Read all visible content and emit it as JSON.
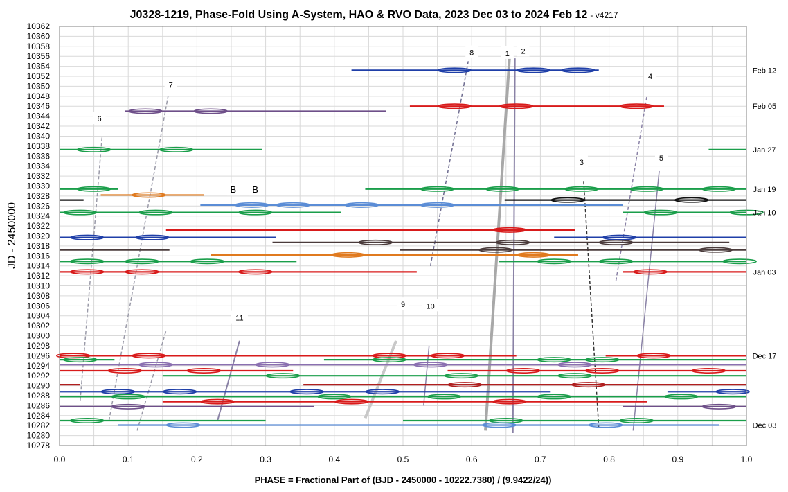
{
  "chart_data": {
    "type": "scatter",
    "title": "J0328-1219, Phase-Fold Using A-System, HAO & RVO Data, 2023 Dec 03 to 2024 Feb 12",
    "title_suffix": "- v4217",
    "xlabel": "PHASE = Fractional Part of (BJD - 2450000 - 10222.7380) / (9.9422/24))",
    "ylabel": "JD - 2450000",
    "xlim": [
      0.0,
      1.0
    ],
    "ylim": [
      10278,
      10362
    ],
    "x_ticks": [
      "0.0",
      "0.1",
      "0.2",
      "0.3",
      "0.4",
      "0.5",
      "0.6",
      "0.7",
      "0.8",
      "0.9",
      "1.0"
    ],
    "y_tick_step": 2,
    "grid": true,
    "date_labels": [
      {
        "label": "Feb 12",
        "y": 10353.2
      },
      {
        "label": "Feb 05",
        "y": 10346.0
      },
      {
        "label": "Jan 27",
        "y": 10337.3
      },
      {
        "label": "Jan 19",
        "y": 10329.4
      },
      {
        "label": "Jan 10",
        "y": 10324.7
      },
      {
        "label": "Jan 03",
        "y": 10312.8
      },
      {
        "label": "Dec 17",
        "y": 10296.0
      },
      {
        "label": "Dec 03",
        "y": 10282.1
      }
    ],
    "annotations": [
      {
        "text": "1",
        "x": 0.652,
        "y": 10356.6
      },
      {
        "text": "2",
        "x": 0.675,
        "y": 10357.1
      },
      {
        "text": "3",
        "x": 0.76,
        "y": 10334.8
      },
      {
        "text": "4",
        "x": 0.86,
        "y": 10352.0
      },
      {
        "text": "5",
        "x": 0.876,
        "y": 10335.6
      },
      {
        "text": "6",
        "x": 0.058,
        "y": 10343.5
      },
      {
        "text": "7",
        "x": 0.162,
        "y": 10350.3
      },
      {
        "text": "8",
        "x": 0.6,
        "y": 10356.8
      },
      {
        "text": "9",
        "x": 0.5,
        "y": 10306.3
      },
      {
        "text": "10",
        "x": 0.54,
        "y": 10306.0
      },
      {
        "text": "11",
        "x": 0.262,
        "y": 10303.6
      },
      {
        "text": "B",
        "x": 0.253,
        "y": 10329.2
      },
      {
        "text": "B",
        "x": 0.285,
        "y": 10329.2
      }
    ],
    "series": [
      {
        "color": "#1f3fa8",
        "y": 10353.2,
        "x_start": 0.425,
        "x_end": 0.785,
        "ellipses": [
          0.575,
          0.69,
          0.755
        ]
      },
      {
        "color": "#d81b1b",
        "y": 10346.0,
        "x_start": 0.51,
        "x_end": 0.88,
        "ellipses": [
          0.575,
          0.665,
          0.84
        ]
      },
      {
        "color": "#6e4f89",
        "y": 10345.0,
        "x_start": 0.095,
        "x_end": 0.475,
        "ellipses": [
          0.125,
          0.22
        ]
      },
      {
        "color": "#1a9e4a",
        "y": 10337.3,
        "x_start": 0.0,
        "x_end": 0.295,
        "ellipses": [
          0.05,
          0.17
        ]
      },
      {
        "color": "#1a9e4a",
        "y": 10337.3,
        "x_start": 0.945,
        "x_end": 1.0,
        "ellipses": []
      },
      {
        "color": "#1a9e4a",
        "y": 10329.4,
        "x_start": 0.0,
        "x_end": 0.085,
        "ellipses": [
          0.05
        ]
      },
      {
        "color": "#1a9e4a",
        "y": 10329.4,
        "x_start": 0.445,
        "x_end": 1.0,
        "ellipses": [
          0.55,
          0.645,
          0.76,
          0.855,
          0.96
        ]
      },
      {
        "color": "#e07a1f",
        "y": 10328.2,
        "x_start": 0.06,
        "x_end": 0.21,
        "ellipses": [
          0.13
        ]
      },
      {
        "color": "#111111",
        "y": 10327.2,
        "x_start": 0.0,
        "x_end": 0.035,
        "ellipses": []
      },
      {
        "color": "#111111",
        "y": 10327.2,
        "x_start": 0.648,
        "x_end": 1.0,
        "ellipses": [
          0.74,
          0.92
        ]
      },
      {
        "color": "#5b8dd6",
        "y": 10326.2,
        "x_start": 0.205,
        "x_end": 0.82,
        "ellipses": [
          0.28,
          0.34,
          0.44,
          0.55
        ]
      },
      {
        "color": "#1a9e4a",
        "y": 10324.7,
        "x_start": 0.0,
        "x_end": 0.41,
        "ellipses": [
          0.03,
          0.14,
          0.285
        ]
      },
      {
        "color": "#1a9e4a",
        "y": 10324.7,
        "x_start": 0.82,
        "x_end": 1.0,
        "ellipses": [
          0.875,
          1.0
        ]
      },
      {
        "color": "#d81b1b",
        "y": 10321.2,
        "x_start": 0.155,
        "x_end": 0.75,
        "ellipses": [
          0.655
        ]
      },
      {
        "color": "#1f3fa8",
        "y": 10319.7,
        "x_start": 0.0,
        "x_end": 0.315,
        "ellipses": [
          0.04,
          0.135
        ]
      },
      {
        "color": "#1f3fa8",
        "y": 10319.7,
        "x_start": 0.72,
        "x_end": 1.0,
        "ellipses": [
          0.815
        ]
      },
      {
        "color": "#4a3b3b",
        "y": 10318.7,
        "x_start": 0.31,
        "x_end": 0.975,
        "ellipses": [
          0.46,
          0.66,
          0.81
        ]
      },
      {
        "color": "#4a3b3b",
        "y": 10317.2,
        "x_start": 0.0,
        "x_end": 0.16,
        "ellipses": []
      },
      {
        "color": "#4a3b3b",
        "y": 10317.2,
        "x_start": 0.495,
        "x_end": 1.0,
        "ellipses": [
          0.635,
          0.955
        ]
      },
      {
        "color": "#e07a1f",
        "y": 10316.2,
        "x_start": 0.22,
        "x_end": 0.755,
        "ellipses": [
          0.42,
          0.69
        ]
      },
      {
        "color": "#1a9e4a",
        "y": 10314.9,
        "x_start": 0.0,
        "x_end": 0.345,
        "ellipses": [
          0.04,
          0.12,
          0.215
        ]
      },
      {
        "color": "#1a9e4a",
        "y": 10314.9,
        "x_start": 0.64,
        "x_end": 1.0,
        "ellipses": [
          0.72,
          0.81,
          0.99
        ]
      },
      {
        "color": "#d81b1b",
        "y": 10312.8,
        "x_start": 0.0,
        "x_end": 0.52,
        "ellipses": [
          0.04,
          0.12,
          0.285
        ]
      },
      {
        "color": "#d81b1b",
        "y": 10312.8,
        "x_start": 0.82,
        "x_end": 1.0,
        "ellipses": [
          0.86
        ]
      },
      {
        "color": "#d81b1b",
        "y": 10296.0,
        "x_start": 0.0,
        "x_end": 0.665,
        "ellipses": [
          0.02,
          0.13,
          0.48,
          0.565
        ]
      },
      {
        "color": "#d81b1b",
        "y": 10296.0,
        "x_start": 0.795,
        "x_end": 1.0,
        "ellipses": [
          0.865
        ]
      },
      {
        "color": "#1a9e4a",
        "y": 10295.2,
        "x_start": 0.0,
        "x_end": 0.08,
        "ellipses": [
          0.03
        ]
      },
      {
        "color": "#1a9e4a",
        "y": 10295.2,
        "x_start": 0.385,
        "x_end": 1.0,
        "ellipses": [
          0.48,
          0.72,
          0.79
        ]
      },
      {
        "color": "#8a6fb0",
        "y": 10294.2,
        "x_start": 0.0,
        "x_end": 1.0,
        "ellipses": [
          0.14,
          0.31,
          0.54,
          0.75
        ]
      },
      {
        "color": "#d81b1b",
        "y": 10293.0,
        "x_start": 0.0,
        "x_end": 0.34,
        "ellipses": [
          0.095,
          0.21
        ]
      },
      {
        "color": "#d81b1b",
        "y": 10293.0,
        "x_start": 0.565,
        "x_end": 1.0,
        "ellipses": [
          0.675,
          0.79,
          0.945
        ]
      },
      {
        "color": "#1a9e4a",
        "y": 10292.0,
        "x_start": 0.15,
        "x_end": 1.0,
        "ellipses": [
          0.325,
          0.585,
          0.75
        ]
      },
      {
        "color": "#b01e1e",
        "y": 10290.2,
        "x_start": 0.0,
        "x_end": 0.03,
        "ellipses": []
      },
      {
        "color": "#b01e1e",
        "y": 10290.2,
        "x_start": 0.355,
        "x_end": 1.0,
        "ellipses": [
          0.59,
          0.77
        ]
      },
      {
        "color": "#1f3fa8",
        "y": 10288.8,
        "x_start": 0.0,
        "x_end": 0.715,
        "ellipses": [
          0.085,
          0.175,
          0.36,
          0.47
        ]
      },
      {
        "color": "#1f3fa8",
        "y": 10288.8,
        "x_start": 0.885,
        "x_end": 1.0,
        "ellipses": [
          0.98
        ]
      },
      {
        "color": "#1a9e4a",
        "y": 10287.8,
        "x_start": 0.0,
        "x_end": 1.0,
        "ellipses": [
          0.1,
          0.4,
          0.56,
          0.72,
          0.905
        ]
      },
      {
        "color": "#d81b1b",
        "y": 10286.8,
        "x_start": 0.15,
        "x_end": 0.855,
        "ellipses": [
          0.23,
          0.425,
          0.655
        ]
      },
      {
        "color": "#6e4f89",
        "y": 10285.8,
        "x_start": 0.0,
        "x_end": 0.37,
        "ellipses": [
          0.1
        ]
      },
      {
        "color": "#6e4f89",
        "y": 10285.8,
        "x_start": 0.82,
        "x_end": 1.0,
        "ellipses": [
          0.96
        ]
      },
      {
        "color": "#1a9e4a",
        "y": 10283.0,
        "x_start": 0.0,
        "x_end": 0.3,
        "ellipses": [
          0.04
        ]
      },
      {
        "color": "#1a9e4a",
        "y": 10283.0,
        "x_start": 0.5,
        "x_end": 1.0,
        "ellipses": [
          0.65,
          0.84
        ]
      },
      {
        "color": "#5b8dd6",
        "y": 10282.1,
        "x_start": 0.085,
        "x_end": 0.96,
        "ellipses": [
          0.18,
          0.64,
          0.795
        ]
      }
    ],
    "trend_lines": [
      {
        "points": [
          [
            0.62,
            10281
          ],
          [
            0.655,
            10355.6
          ]
        ],
        "color": "#a8a8a8",
        "width": 4,
        "dashed": false
      },
      {
        "points": [
          [
            0.66,
            10280.5
          ],
          [
            0.663,
            10355.6
          ]
        ],
        "color": "#8a82a6",
        "width": 2,
        "dashed": false
      },
      {
        "points": [
          [
            0.54,
            10314
          ],
          [
            0.595,
            10355
          ]
        ],
        "color": "#6d6b8f",
        "width": 1.5,
        "dashed": true
      },
      {
        "points": [
          [
            0.763,
            10331
          ],
          [
            0.785,
            10281.5
          ]
        ],
        "color": "#333333",
        "width": 1.5,
        "dashed": true
      },
      {
        "points": [
          [
            0.81,
            10311
          ],
          [
            0.855,
            10348
          ]
        ],
        "color": "#8a82a6",
        "width": 1.5,
        "dashed": true
      },
      {
        "points": [
          [
            0.835,
            10281
          ],
          [
            0.873,
            10333
          ]
        ],
        "color": "#8a82a6",
        "width": 1.5,
        "dashed": false
      },
      {
        "points": [
          [
            0.03,
            10287
          ],
          [
            0.062,
            10340
          ]
        ],
        "color": "#9a9aa8",
        "width": 1.5,
        "dashed": true
      },
      {
        "points": [
          [
            0.072,
            10283
          ],
          [
            0.158,
            10348
          ]
        ],
        "color": "#9a9aa8",
        "width": 1.5,
        "dashed": true
      },
      {
        "points": [
          [
            0.113,
            10281
          ],
          [
            0.155,
            10301
          ]
        ],
        "color": "#9a9aa8",
        "width": 1.5,
        "dashed": true
      },
      {
        "points": [
          [
            0.23,
            10283
          ],
          [
            0.262,
            10299
          ]
        ],
        "color": "#8a82a6",
        "width": 2,
        "dashed": false
      },
      {
        "points": [
          [
            0.445,
            10283.5
          ],
          [
            0.49,
            10299
          ]
        ],
        "color": "#c8c8c8",
        "width": 4,
        "dashed": false
      },
      {
        "points": [
          [
            0.53,
            10286
          ],
          [
            0.538,
            10298
          ]
        ],
        "color": "#8a82a6",
        "width": 1.5,
        "dashed": false
      }
    ]
  }
}
